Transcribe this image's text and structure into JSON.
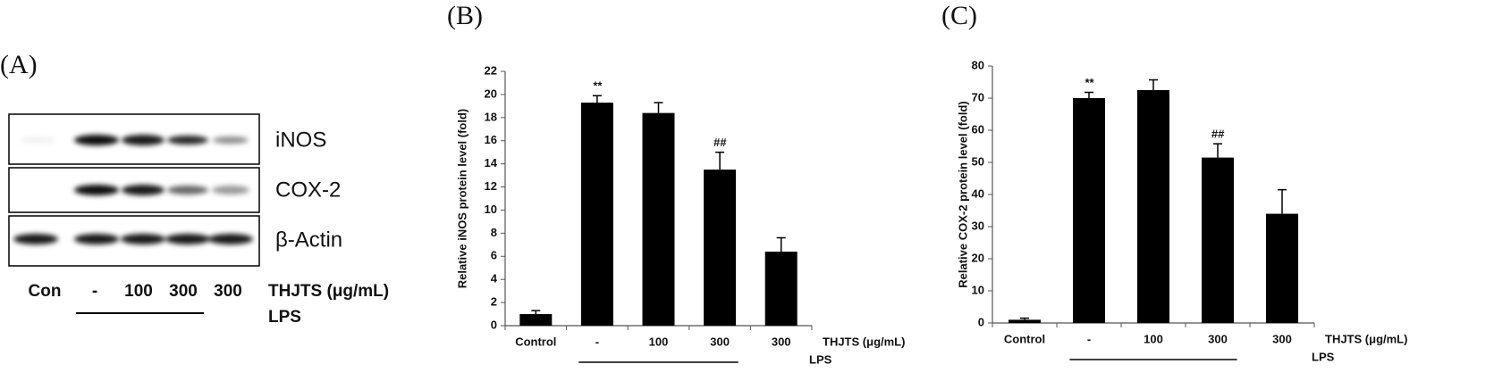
{
  "panel_a": {
    "label": "(A)",
    "proteins": [
      "iNOS",
      "COX-2",
      "β-Actin"
    ],
    "lanes": [
      "Con",
      "-",
      "100",
      "300",
      "300"
    ],
    "treatment": "THJTS (μg/mL)",
    "lps": "LPS"
  },
  "chart_data": [
    {
      "type": "bar",
      "label": "(B)",
      "ylabel": "Relative iNOS protein level (fold)",
      "categories": [
        "Control",
        "-",
        "100",
        "300",
        "300"
      ],
      "values": [
        1.0,
        19.3,
        18.4,
        13.5,
        6.4
      ],
      "errors": [
        0.3,
        0.6,
        0.9,
        1.5,
        1.2
      ],
      "value_annotations": [
        null,
        "**",
        null,
        "##",
        null
      ],
      "color": "#000000",
      "ylim": [
        0,
        22
      ],
      "yticks": [
        0,
        2,
        4,
        6,
        8,
        10,
        12,
        14,
        16,
        18,
        20,
        22
      ],
      "treatment": "THJTS (μg/mL)",
      "lps": "LPS"
    },
    {
      "type": "bar",
      "label": "(C)",
      "ylabel": "Relative COX-2 protein level (fold)",
      "categories": [
        "Control",
        "-",
        "100",
        "300",
        "300"
      ],
      "values": [
        1.0,
        70,
        72.5,
        51.5,
        34
      ],
      "errors": [
        0.5,
        1.8,
        3.2,
        4.3,
        7.5
      ],
      "value_annotations": [
        null,
        "**",
        null,
        "##",
        null
      ],
      "color": "#000000",
      "ylim": [
        0,
        80
      ],
      "yticks": [
        0,
        10,
        20,
        30,
        40,
        50,
        60,
        70,
        80
      ],
      "treatment": "THJTS (μg/mL)",
      "lps": "LPS"
    }
  ]
}
